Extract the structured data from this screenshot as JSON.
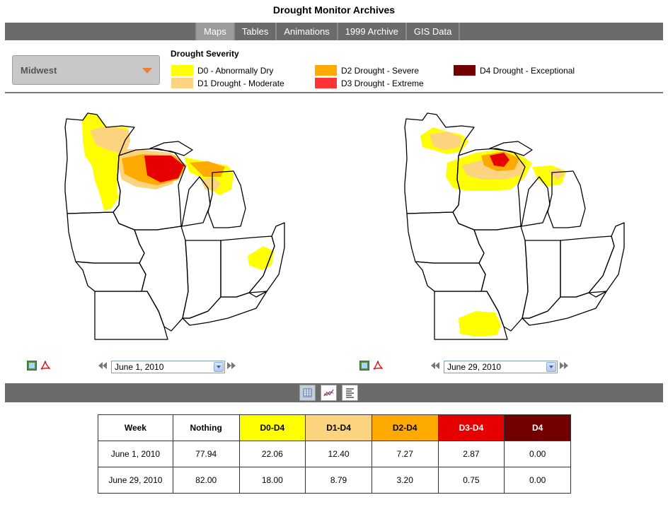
{
  "page": {
    "title": "Drought Monitor Archives"
  },
  "nav": {
    "tabs": [
      {
        "label": "Maps",
        "active": true
      },
      {
        "label": "Tables",
        "active": false
      },
      {
        "label": "Animations",
        "active": false
      },
      {
        "label": "1999 Archive",
        "active": false
      },
      {
        "label": "GIS Data",
        "active": false
      }
    ]
  },
  "region_select": {
    "value": "Midwest",
    "icon": "chevron-down-icon"
  },
  "legend": {
    "title": "Drought Severity",
    "items": [
      {
        "label": "D0 - Abnormally Dry",
        "color": "#ffff00"
      },
      {
        "label": "D1 Drought - Moderate",
        "color": "#fcd37f"
      },
      {
        "label": "D2 Drought - Severe",
        "color": "#ffaa00"
      },
      {
        "label": "D3 Drought - Extreme",
        "color": "#ff3333"
      },
      {
        "label": "D4 Drought - Exceptional",
        "color": "#730000"
      }
    ]
  },
  "maps": {
    "left": {
      "date": "June 1, 2010"
    },
    "right": {
      "date": "June 29, 2010"
    }
  },
  "toolbar": {
    "buttons": [
      {
        "icon": "table-icon",
        "active": true
      },
      {
        "icon": "chart-icon",
        "active": false
      },
      {
        "icon": "text-icon",
        "active": false
      }
    ]
  },
  "stats_table": {
    "headers": [
      {
        "label": "Week",
        "bg": "#ffffff",
        "color": "#000000"
      },
      {
        "label": "Nothing",
        "bg": "#ffffff",
        "color": "#000000"
      },
      {
        "label": "D0-D4",
        "bg": "#ffff00",
        "color": "#000000"
      },
      {
        "label": "D1-D4",
        "bg": "#fcd37f",
        "color": "#000000"
      },
      {
        "label": "D2-D4",
        "bg": "#ffaa00",
        "color": "#000000"
      },
      {
        "label": "D3-D4",
        "bg": "#e60000",
        "color": "#ffffff"
      },
      {
        "label": "D4",
        "bg": "#730000",
        "color": "#ffffff"
      }
    ],
    "rows": [
      [
        "June 1, 2010",
        "77.94",
        "22.06",
        "12.40",
        "7.27",
        "2.87",
        "0.00"
      ],
      [
        "June 29, 2010",
        "82.00",
        "18.00",
        "8.79",
        "3.20",
        "0.75",
        "0.00"
      ]
    ]
  }
}
